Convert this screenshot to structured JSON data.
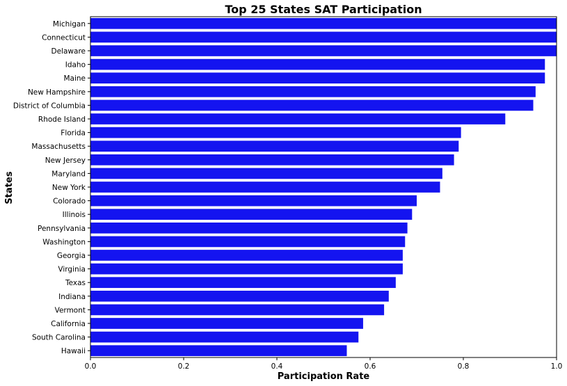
{
  "chart_data": {
    "type": "bar",
    "orientation": "horizontal",
    "title": "Top 25 States SAT Participation",
    "xlabel": "Participation Rate",
    "ylabel": "States",
    "xlim": [
      0,
      1.0
    ],
    "xticks": [
      "0.0",
      "0.2",
      "0.4",
      "0.6",
      "0.8",
      "1.0"
    ],
    "bar_color": "#1414F0",
    "grid": false,
    "categories": [
      "Michigan",
      "Connecticut",
      "Delaware",
      "Idaho",
      "Maine",
      "New Hampshire",
      "District of Columbia",
      "Rhode Island",
      "Florida",
      "Massachusetts",
      "New Jersey",
      "Maryland",
      "New York",
      "Colorado",
      "Illinois",
      "Pennsylvania",
      "Washington",
      "Georgia",
      "Virginia",
      "Texas",
      "Indiana",
      "Vermont",
      "California",
      "South Carolina",
      "Hawaii"
    ],
    "values": [
      1.0,
      1.0,
      1.0,
      0.975,
      0.975,
      0.955,
      0.95,
      0.89,
      0.795,
      0.79,
      0.78,
      0.755,
      0.75,
      0.7,
      0.69,
      0.68,
      0.675,
      0.67,
      0.67,
      0.655,
      0.64,
      0.63,
      0.585,
      0.575,
      0.55
    ]
  }
}
